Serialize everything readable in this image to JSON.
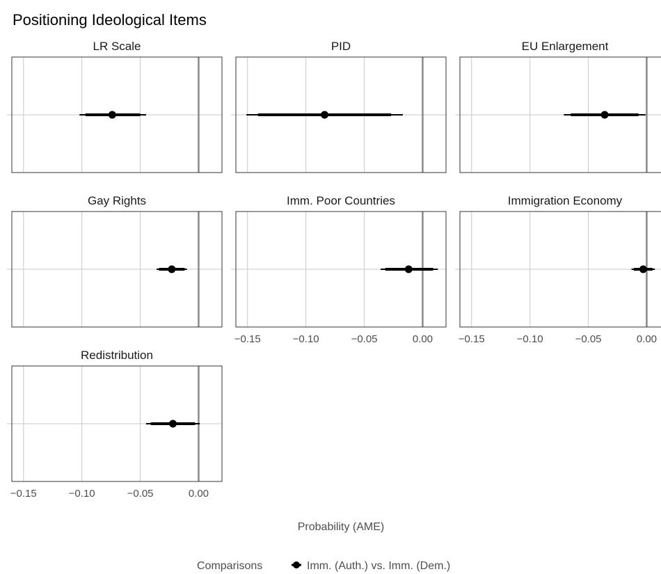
{
  "chart_data": {
    "type": "forest",
    "title": "Positioning Ideological Items",
    "xlabel": "Probability (AME)",
    "xlim": [
      -0.16,
      0.02
    ],
    "x_ticks": [
      -0.15,
      -0.1,
      -0.05,
      0.0
    ],
    "x_tick_labels": [
      "−0.15",
      "−0.10",
      "−0.05",
      "0.00"
    ],
    "reference_line": 0,
    "grid": true,
    "legend": {
      "title": "Comparisons",
      "position": "bottom",
      "series": [
        "Imm. (Auth.) vs. Imm. (Dem.)"
      ]
    },
    "panels": [
      {
        "name": "LR Scale",
        "estimate": -0.074,
        "ci95": [
          -0.102,
          -0.045
        ],
        "ci90": [
          -0.097,
          -0.05
        ]
      },
      {
        "name": "PID",
        "estimate": -0.084,
        "ci95": [
          -0.151,
          -0.017
        ],
        "ci90": [
          -0.141,
          -0.027
        ]
      },
      {
        "name": "EU Enlargement",
        "estimate": -0.036,
        "ci95": [
          -0.071,
          -0.001
        ],
        "ci90": [
          -0.065,
          -0.007
        ]
      },
      {
        "name": "Gay Rights",
        "estimate": -0.023,
        "ci95": [
          -0.036,
          -0.01
        ],
        "ci90": [
          -0.034,
          -0.012
        ]
      },
      {
        "name": "Imm. Poor Countries",
        "estimate": -0.012,
        "ci95": [
          -0.036,
          0.013
        ],
        "ci90": [
          -0.032,
          0.009
        ]
      },
      {
        "name": "Immigration Economy",
        "estimate": -0.003,
        "ci95": [
          -0.013,
          0.007
        ],
        "ci90": [
          -0.011,
          0.005
        ]
      },
      {
        "name": "Redistribution",
        "estimate": -0.022,
        "ci95": [
          -0.045,
          0.001
        ],
        "ci90": [
          -0.041,
          -0.003
        ]
      }
    ]
  }
}
